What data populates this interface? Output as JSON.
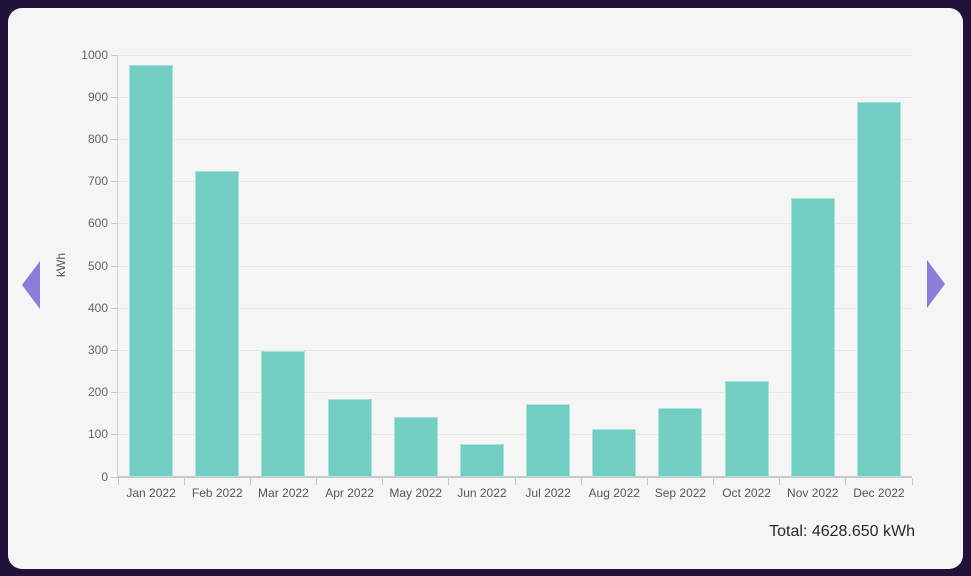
{
  "chart_data": {
    "type": "bar",
    "title": "",
    "categories": [
      "Jan 2022",
      "Feb 2022",
      "Mar 2022",
      "Apr 2022",
      "May 2022",
      "Jun 2022",
      "Jul 2022",
      "Aug 2022",
      "Sep 2022",
      "Oct 2022",
      "Nov 2022",
      "Dec 2022"
    ],
    "values": [
      976,
      724,
      299,
      186,
      141,
      78,
      173,
      113,
      163,
      227,
      660,
      888
    ],
    "xlabel": "",
    "ylabel": "kWh",
    "ylim": [
      0,
      1000
    ],
    "ytick_step": 100,
    "grid": true,
    "legend": false
  },
  "footer": {
    "total_text": "Total: 4628.650 kWh"
  },
  "icons": {
    "prev": "chevron-left-icon",
    "next": "chevron-right-icon"
  },
  "colors": {
    "background": "#211239",
    "card": "#f5f5f6",
    "bar": "#72cdc2",
    "arrow": "#8b7dd8",
    "gridline": "#e7e7e9",
    "axis": "#c9c9cc",
    "y_axis_line": "#d4d4d7",
    "tick_label": "#63636b",
    "total_text_color": "#28282e"
  }
}
